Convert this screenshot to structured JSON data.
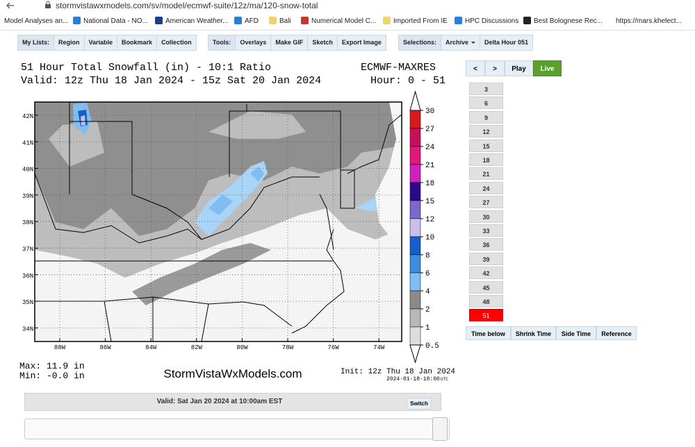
{
  "browser": {
    "url": "stormvistawxmodels.com/sv/model/ecmwf-suite/12z/ma/120-snow-total",
    "bookmarks": [
      "Model Analyses an...",
      "National Data - NO...",
      "American Weather...",
      "AFD",
      "Bali",
      "Numerical Model C...",
      "Imported From IE",
      "HPC Discussions",
      "Best Bolognese Rec...",
      "https://mars.khelect..."
    ]
  },
  "toolbar": [
    {
      "label": "My Lists:",
      "buttons": [
        "Region",
        "Variable",
        "Bookmark",
        "Collection"
      ]
    },
    {
      "label": "Tools:",
      "buttons": [
        "Overlays",
        "Make GIF",
        "Sketch",
        "Export Image"
      ]
    },
    {
      "label": "Selections:",
      "buttons": [
        "Archive",
        "Delta Hour 051"
      ]
    }
  ],
  "map": {
    "title": "51 Hour Total Snowfall (in) - 10:1 Ratio",
    "valid": "Valid: 12z Thu 18 Jan 2024 - 15z Sat 20 Jan 2024",
    "model": "ECMWF-MAXRES",
    "hour": "Hour: 0 - 51",
    "lat_labels": [
      "42N",
      "41N",
      "40N",
      "39N",
      "38N",
      "37N",
      "36N",
      "35N",
      "34N"
    ],
    "lon_labels": [
      "88W",
      "86W",
      "84W",
      "82W",
      "80W",
      "78W",
      "76W",
      "74W"
    ],
    "legend_labels": [
      "30",
      "27",
      "24",
      "21",
      "18",
      "15",
      "12",
      "10",
      "8",
      "6",
      "4",
      "2",
      "1",
      "0.5"
    ],
    "max": "Max: 11.9 in",
    "min": "Min: -0.0 in",
    "site": "StormVistaWxModels.com",
    "init": "Init: 12z Thu 18 Jan 2024",
    "init_time": "2024-01-18-18:00",
    "utc": "UTC"
  },
  "valid_bar": {
    "text": "Valid: Sat Jan 20 2024 at 10:00am EST",
    "switch": "Switch"
  },
  "controls": {
    "prev": "<",
    "next": ">",
    "play": "Play",
    "live": "Live"
  },
  "hours": [
    "3",
    "6",
    "9",
    "12",
    "15",
    "18",
    "21",
    "24",
    "27",
    "30",
    "33",
    "36",
    "39",
    "42",
    "45",
    "48",
    "51"
  ],
  "bottom_buttons": [
    "Time below",
    "Shrink Time",
    "Side Time",
    "Reference"
  ]
}
